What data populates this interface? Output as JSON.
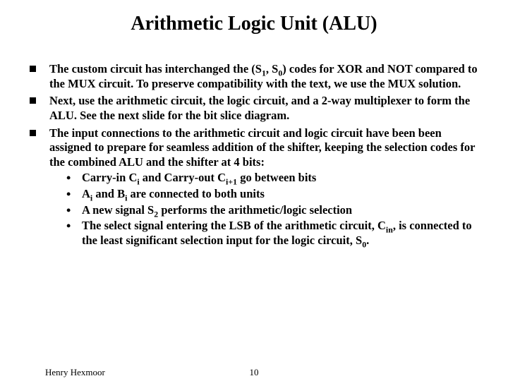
{
  "title": "Arithmetic Logic Unit (ALU)",
  "bullets": [
    {
      "html": "The custom circuit has interchanged the (S<sub>1</sub>, S<sub>0</sub>) codes for XOR and NOT compared to the MUX circuit. To preserve compatibility with the text, we use the MUX solution."
    },
    {
      "html": "Next, use the arithmetic circuit, the logic circuit, and a 2-way multiplexer to form the ALU. See the next slide for the bit slice diagram."
    },
    {
      "html": "The input connections to the arithmetic circuit and logic circuit have been been assigned  to prepare for seamless addition of the shifter, keeping the selection codes for the combined ALU and the shifter at 4 bits:",
      "sub": [
        {
          "html": "Carry-in C<sub>i</sub> and Carry-out C<sub>i+1</sub> go between bits"
        },
        {
          "html": "A<sub>i</sub> and B<sub>i</sub> are connected to both units"
        },
        {
          "html": "A new signal S<sub>2</sub> performs the arithmetic/logic selection"
        },
        {
          "html": "The select signal entering the LSB of  the arithmetic circuit, C<sub>in</sub>,  is connected to  the least significant selection input for the logic circuit, S<sub>0</sub>."
        }
      ]
    }
  ],
  "footer": {
    "author": "Henry Hexmoor",
    "page": "10"
  },
  "style": {
    "background": "#ffffff",
    "text_color": "#000000",
    "title_fontsize": 28,
    "body_fontsize": 16.5,
    "font_family": "Times New Roman",
    "bullet_shape": "square",
    "bullet_color": "#000000"
  }
}
